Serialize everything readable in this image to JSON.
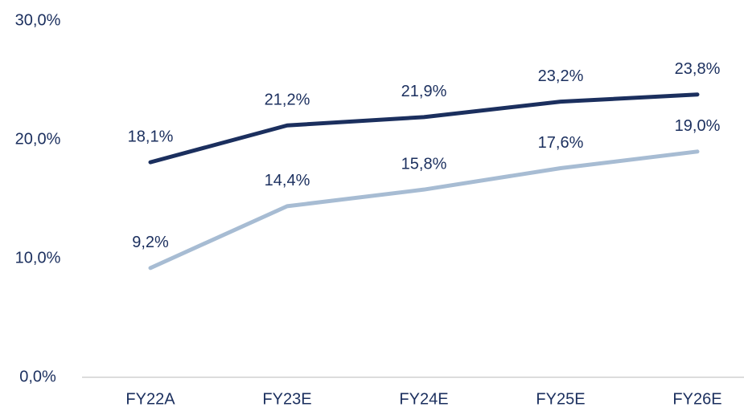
{
  "chart_data": {
    "type": "line",
    "categories": [
      "FY22A",
      "FY23E",
      "FY24E",
      "FY25E",
      "FY26E"
    ],
    "series": [
      {
        "color": "#1b2f5e",
        "values": [
          18.1,
          21.2,
          21.9,
          23.2,
          23.8
        ],
        "value_labels": [
          "18,1%",
          "21,2%",
          "21,9%",
          "23,2%",
          "23,8%"
        ]
      },
      {
        "color": "#a7bcd3",
        "values": [
          9.2,
          14.4,
          15.8,
          17.6,
          19.0
        ],
        "value_labels": [
          "9,2%",
          "14,4%",
          "15,8%",
          "17,6%",
          "19,0%"
        ]
      }
    ],
    "ylim": [
      0,
      30
    ],
    "yticks": [
      {
        "value": 0,
        "label": "0,0%"
      },
      {
        "value": 10,
        "label": "10,0%"
      },
      {
        "value": 20,
        "label": "20,0%"
      },
      {
        "value": 30,
        "label": "30,0%"
      }
    ]
  }
}
